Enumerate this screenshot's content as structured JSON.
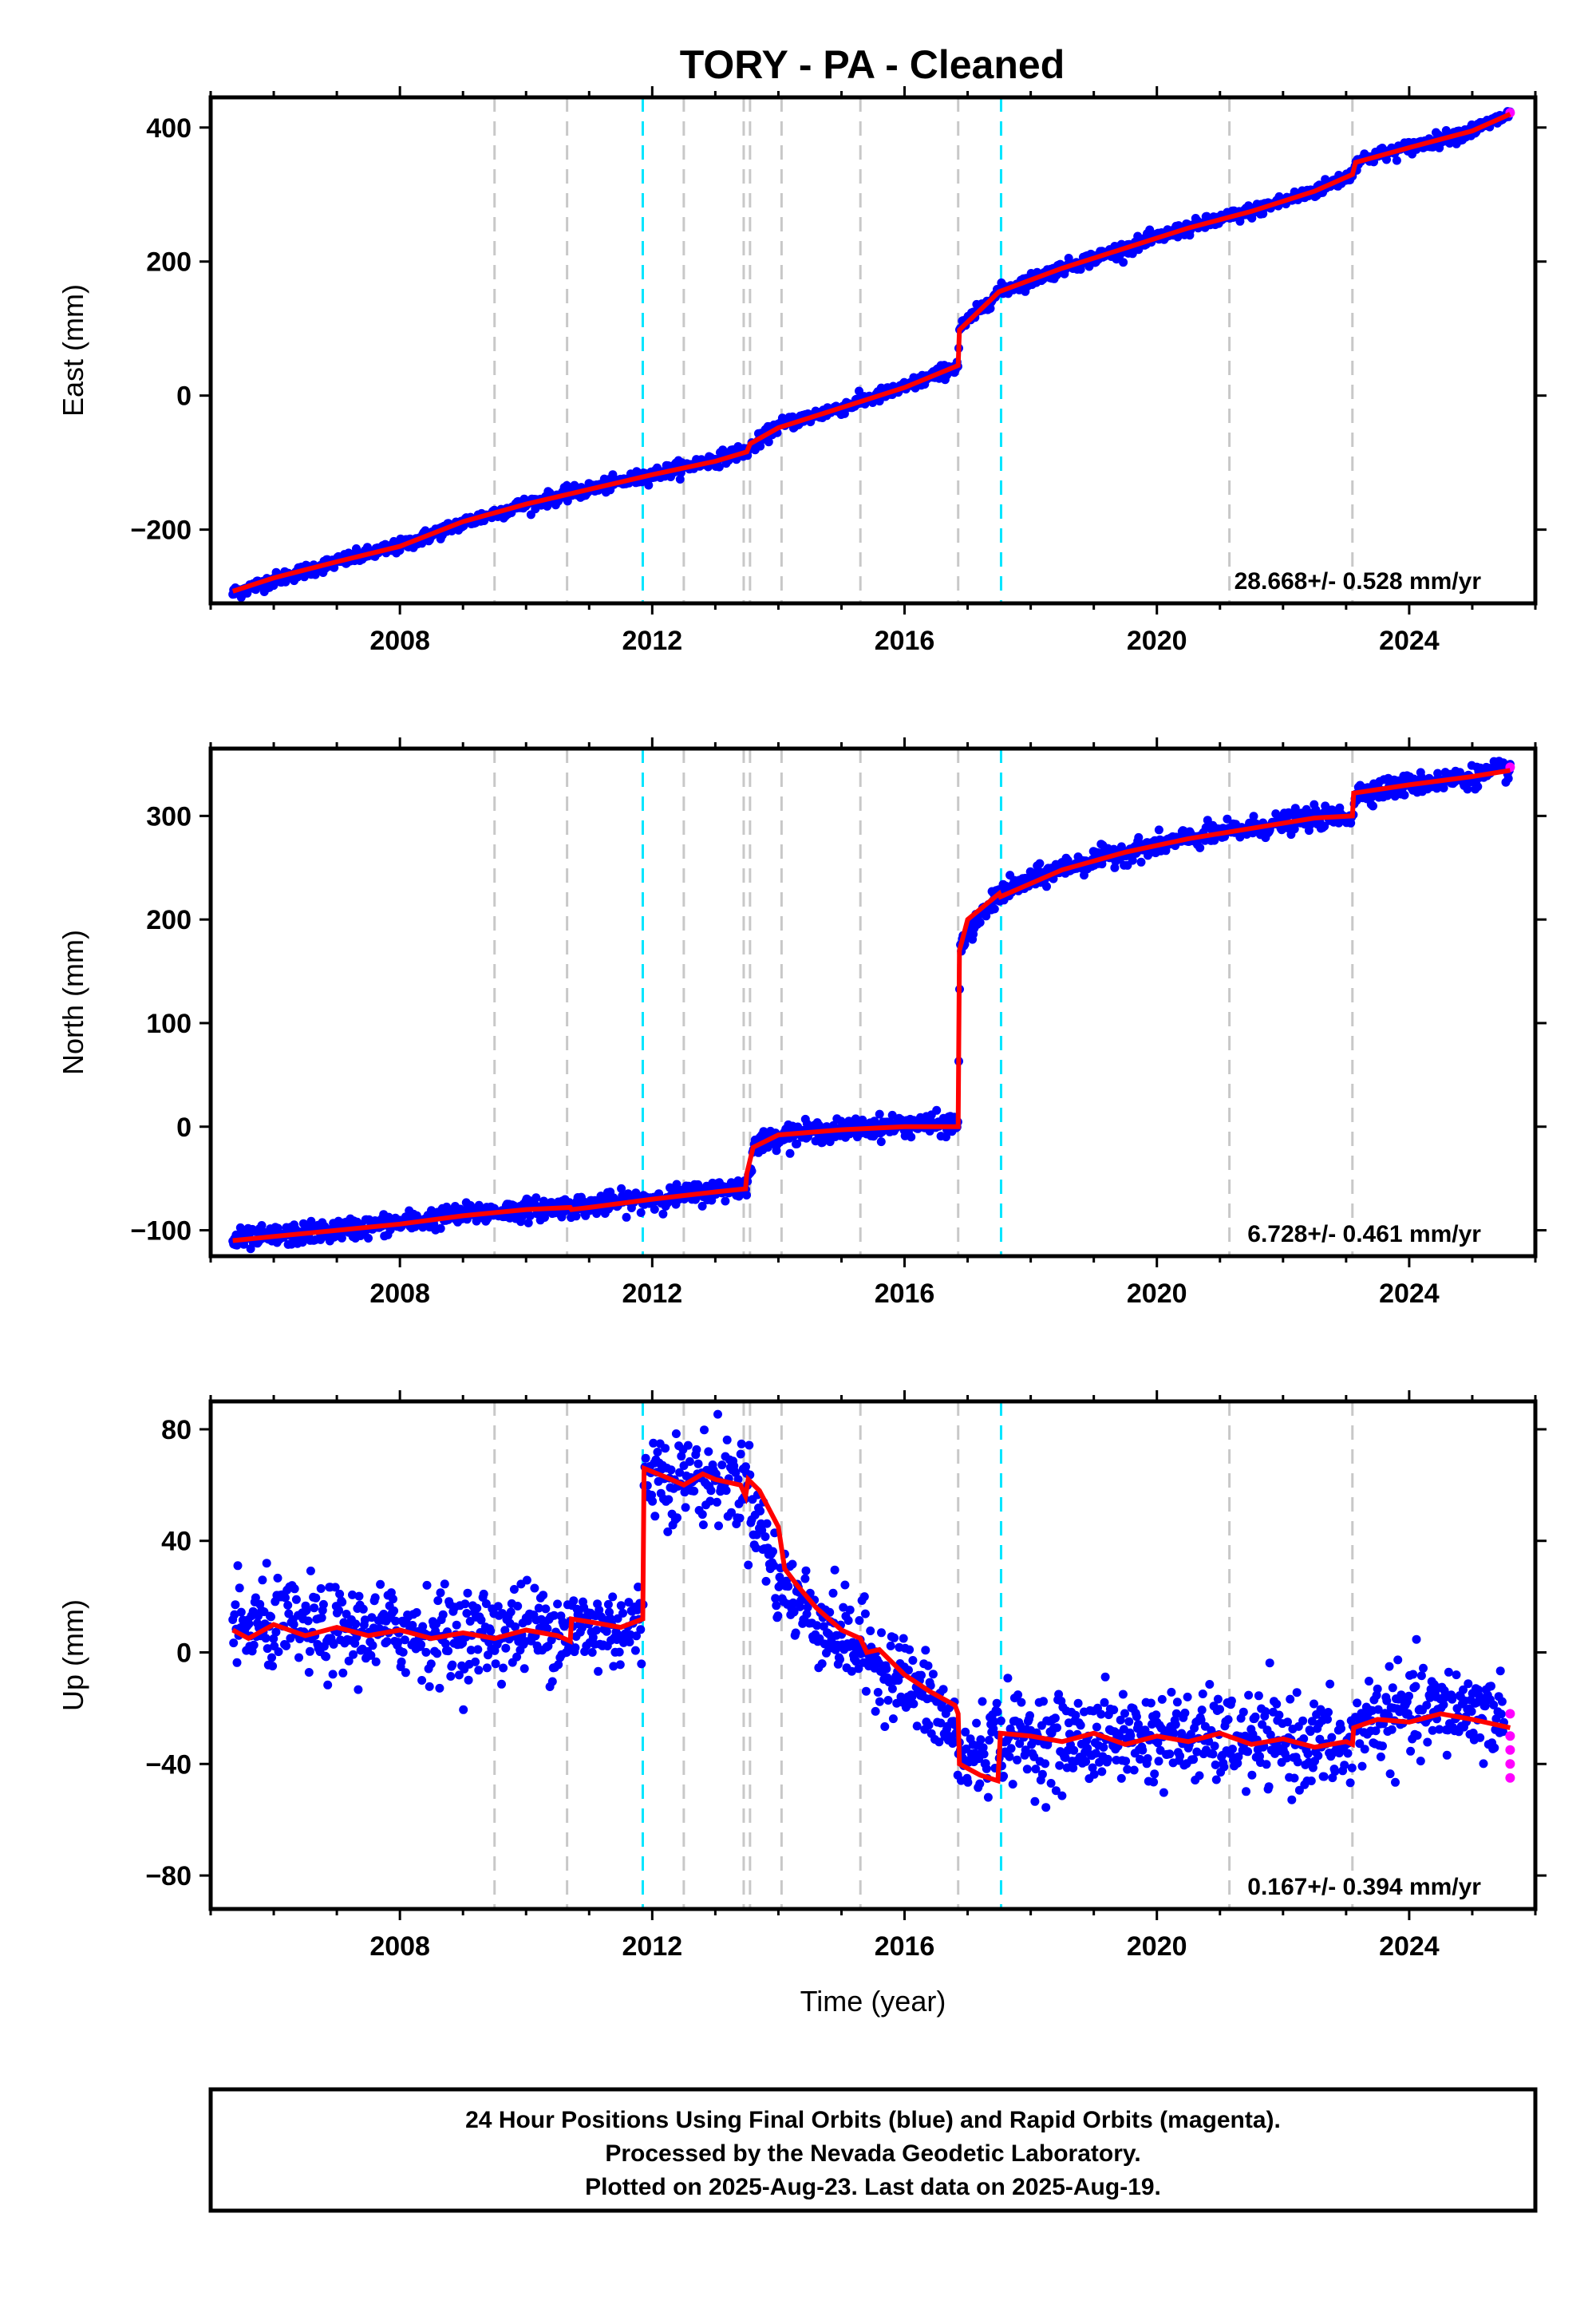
{
  "title": "TORY  - PA - Cleaned",
  "colors": {
    "final_orbits": "#0000ff",
    "rapid_orbits": "#ff00ff",
    "model": "#ff0000",
    "event_gray": "#c8c8c8",
    "event_cyan": "#00e5ff"
  },
  "chart_data": [
    {
      "type": "scatter",
      "panel": "east",
      "ylabel": "East (mm)",
      "xlabel": "",
      "xlim": [
        2005.0,
        2026.0
      ],
      "ylim": [
        -310,
        445
      ],
      "yticks": [
        -200,
        0,
        200,
        400
      ],
      "ytick_labels": [
        "−200",
        "0",
        "200",
        "400"
      ],
      "xticks": [
        2008,
        2012,
        2016,
        2020,
        2024
      ],
      "xtick_labels": [
        "2008",
        "2012",
        "2016",
        "2020",
        "2024"
      ],
      "rate_text": "28.668+/- 0.528 mm/yr",
      "series": [
        {
          "values": {
            "x": [
              2005.35,
              2006.0,
              2007.0,
              2008.0,
              2009.0,
              2010.0,
              2011.0,
              2012.0,
              2013.0,
              2013.5,
              2014.0,
              2015.0,
              2016.0,
              2016.85,
              2016.87,
              2017.5,
              2018.5,
              2019.5,
              2020.5,
              2021.5,
              2022.5,
              2023.1,
              2023.15,
              2024.0,
              2025.0,
              2025.6
            ],
            "y": [
              -295,
              -275,
              -248,
              -225,
              -190,
              -162,
              -140,
              -118,
              -95,
              -82,
              -45,
              -18,
              12,
              45,
              100,
              155,
              190,
              220,
              250,
              275,
              305,
              330,
              350,
              370,
              395,
              420
            ]
          }
        },
        {
          "values": {
            "x": [
              2025.6
            ],
            "y": [
              422
            ]
          }
        }
      ],
      "model": {
        "x": [
          2005.35,
          2006.0,
          2007.0,
          2008.0,
          2009.0,
          2010.0,
          2011.0,
          2012.0,
          2013.0,
          2013.5,
          2013.55,
          2014.0,
          2015.0,
          2016.0,
          2016.85,
          2016.87,
          2017.5,
          2018.5,
          2019.5,
          2020.5,
          2021.5,
          2022.5,
          2023.1,
          2023.15,
          2024.0,
          2025.0,
          2025.6
        ],
        "y": [
          -292,
          -272,
          -248,
          -225,
          -188,
          -162,
          -140,
          -118,
          -98,
          -84,
          -72,
          -48,
          -18,
          12,
          45,
          98,
          155,
          190,
          220,
          250,
          275,
          305,
          330,
          348,
          370,
          395,
          420
        ]
      }
    },
    {
      "type": "scatter",
      "panel": "north",
      "ylabel": "North (mm)",
      "xlabel": "",
      "xlim": [
        2005.0,
        2026.0
      ],
      "ylim": [
        -125,
        365
      ],
      "yticks": [
        -100,
        0,
        100,
        200,
        300
      ],
      "ytick_labels": [
        "−100",
        "0",
        "100",
        "200",
        "300"
      ],
      "xticks": [
        2008,
        2012,
        2016,
        2020,
        2024
      ],
      "xtick_labels": [
        "2008",
        "2012",
        "2016",
        "2020",
        "2024"
      ],
      "rate_text": "6.728+/- 0.461 mm/yr",
      "series": [
        {
          "values": {
            "x": [
              2005.35,
              2006.0,
              2007.0,
              2008.0,
              2009.0,
              2010.0,
              2011.0,
              2012.0,
              2013.0,
              2013.5,
              2013.6,
              2014.0,
              2015.0,
              2016.0,
              2016.85,
              2016.88,
              2017.5,
              2018.5,
              2019.5,
              2020.5,
              2021.5,
              2022.5,
              2023.1,
              2023.15,
              2024.0,
              2025.0,
              2025.6
            ],
            "y": [
              -110,
              -106,
              -100,
              -93,
              -85,
              -80,
              -76,
              -70,
              -62,
              -58,
              -20,
              -8,
              -3,
              2,
              2,
              175,
              225,
              250,
              265,
              278,
              288,
              298,
              300,
              322,
              330,
              338,
              345
            ]
          }
        },
        {
          "values": {
            "x": [
              2025.6
            ],
            "y": [
              347
            ]
          }
        }
      ],
      "model": {
        "x": [
          2005.35,
          2006.0,
          2007.0,
          2008.0,
          2009.0,
          2010.0,
          2010.7,
          2010.72,
          2011.0,
          2012.0,
          2013.0,
          2013.48,
          2013.5,
          2013.6,
          2014.0,
          2015.0,
          2016.0,
          2016.85,
          2016.87,
          2017.0,
          2017.5,
          2017.52,
          2018.5,
          2019.5,
          2020.5,
          2021.5,
          2022.5,
          2023.1,
          2023.12,
          2024.0,
          2025.0,
          2025.6
        ],
        "y": [
          -110,
          -106,
          -100,
          -94,
          -86,
          -80,
          -78,
          -80,
          -78,
          -70,
          -63,
          -60,
          -45,
          -20,
          -8,
          -3,
          0,
          0,
          170,
          200,
          225,
          222,
          248,
          265,
          278,
          288,
          298,
          300,
          322,
          330,
          338,
          344
        ]
      }
    },
    {
      "type": "scatter",
      "panel": "up",
      "ylabel": "Up (mm)",
      "xlabel": "Time (year)",
      "xlim": [
        2005.0,
        2026.0
      ],
      "ylim": [
        -92,
        90
      ],
      "yticks": [
        -80,
        -40,
        0,
        40,
        80
      ],
      "ytick_labels": [
        "−80",
        "−40",
        "0",
        "40",
        "80"
      ],
      "xticks": [
        2008,
        2012,
        2016,
        2020,
        2024
      ],
      "xtick_labels": [
        "2008",
        "2012",
        "2016",
        "2020",
        "2024"
      ],
      "rate_text": "0.167+/- 0.394 mm/yr",
      "series": [
        {
          "values": {
            "x": [
              2005.35,
              2006.0,
              2007.0,
              2008.0,
              2009.0,
              2010.0,
              2011.0,
              2011.85,
              2011.88,
              2012.5,
              2013.0,
              2013.5,
              2014.0,
              2014.5,
              2015.0,
              2015.5,
              2016.0,
              2016.5,
              2016.85,
              2016.9,
              2017.5,
              2018.5,
              2019.5,
              2020.5,
              2021.5,
              2022.5,
              2023.1,
              2023.2,
              2024.0,
              2025.0,
              2025.5
            ],
            "y": [
              8,
              10,
              7,
              8,
              6,
              9,
              8,
              10,
              66,
              62,
              63,
              60,
              25,
              14,
              6,
              -2,
              -10,
              -20,
              -32,
              -40,
              -30,
              -32,
              -30,
              -31,
              -32,
              -33,
              -35,
              -25,
              -22,
              -20,
              -24
            ]
          }
        },
        {
          "values": {
            "x": [
              2025.6,
              2025.6,
              2025.6,
              2025.6,
              2025.6
            ],
            "y": [
              -22,
              -30,
              -35,
              -40,
              -45
            ]
          }
        }
      ],
      "model": {
        "x": [
          2005.35,
          2005.6,
          2006.0,
          2006.5,
          2007.0,
          2007.5,
          2008.0,
          2008.5,
          2009.0,
          2009.5,
          2010.0,
          2010.5,
          2010.7,
          2010.72,
          2011.0,
          2011.5,
          2011.85,
          2011.87,
          2012.2,
          2012.5,
          2012.8,
          2013.0,
          2013.4,
          2013.48,
          2013.52,
          2013.7,
          2014.0,
          2014.1,
          2014.3,
          2014.6,
          2015.0,
          2015.3,
          2015.4,
          2015.6,
          2016.0,
          2016.4,
          2016.8,
          2016.85,
          2016.87,
          2017.2,
          2017.48,
          2017.52,
          2018.0,
          2018.5,
          2019.0,
          2019.5,
          2020.0,
          2020.5,
          2021.0,
          2021.5,
          2022.0,
          2022.5,
          2023.0,
          2023.1,
          2023.12,
          2023.5,
          2024.0,
          2024.5,
          2025.0,
          2025.6
        ],
        "y": [
          8,
          5,
          10,
          6,
          9,
          6,
          8,
          5,
          7,
          5,
          8,
          6,
          4,
          12,
          11,
          9,
          12,
          66,
          63,
          60,
          64,
          62,
          60,
          56,
          62,
          58,
          45,
          30,
          24,
          16,
          8,
          5,
          0,
          1,
          -8,
          -14,
          -19,
          -22,
          -40,
          -44,
          -46,
          -29,
          -30,
          -32,
          -29,
          -33,
          -30,
          -32,
          -29,
          -33,
          -31,
          -34,
          -32,
          -33,
          -27,
          -24,
          -25,
          -22,
          -24,
          -27
        ]
      }
    }
  ],
  "event_lines": {
    "gray": [
      2009.5,
      2010.65,
      2012.5,
      2013.45,
      2013.55,
      2014.05,
      2015.3,
      2016.85,
      2021.15,
      2023.1
    ],
    "cyan": [
      2011.85,
      2017.53
    ]
  },
  "footer": {
    "line1": "24 Hour Positions Using Final Orbits (blue) and Rapid Orbits (magenta).",
    "line2": "Processed by the Nevada Geodetic Laboratory.",
    "line3": "Plotted on 2025-Aug-23. Last data on 2025-Aug-19."
  }
}
